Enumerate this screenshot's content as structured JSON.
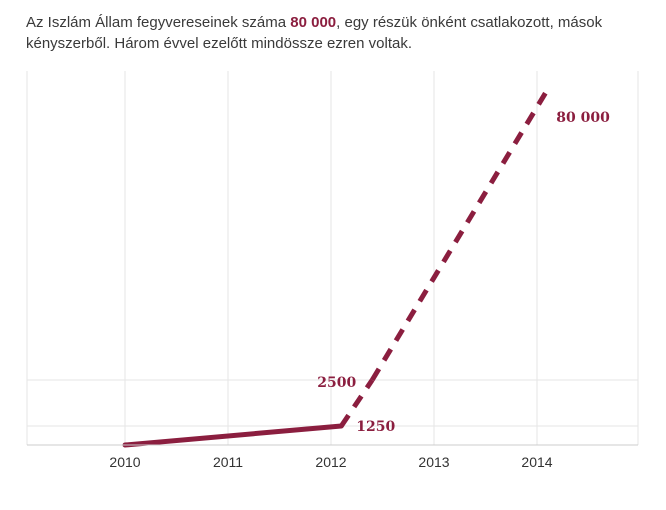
{
  "caption": {
    "part1": "Az Iszlám Állam fegyvereseinek száma ",
    "highlight": "80 000",
    "part2": ", egy részük önként csatlakozott, mások kényszerből. Három évvel ezelőtt mindössze ezren voltak."
  },
  "colors": {
    "line": "#8b1e3f",
    "grid": "#e6e6e6",
    "axis": "#cccccc"
  },
  "chart_data": {
    "type": "line",
    "title": "",
    "xlabel": "",
    "ylabel": "",
    "x_ticks": [
      "2010",
      "2011",
      "2012",
      "2013",
      "2014"
    ],
    "grid": true,
    "series": [
      {
        "points": [
          {
            "x": 2010,
            "y": 1000,
            "style": "solid"
          },
          {
            "x": 2012.1,
            "y": 1250,
            "style": "solid"
          },
          {
            "x": 2012.4,
            "y": 2500,
            "style": "dashed"
          },
          {
            "x": 2014.1,
            "y": 80000,
            "style": "dashed"
          }
        ]
      }
    ],
    "annotations": [
      {
        "text": "80 000",
        "x": 2014.1,
        "y": 80000
      },
      {
        "text": "2500",
        "x": 2012.4,
        "y": 2500
      },
      {
        "text": "1250",
        "x": 2012.1,
        "y": 1250
      }
    ]
  }
}
